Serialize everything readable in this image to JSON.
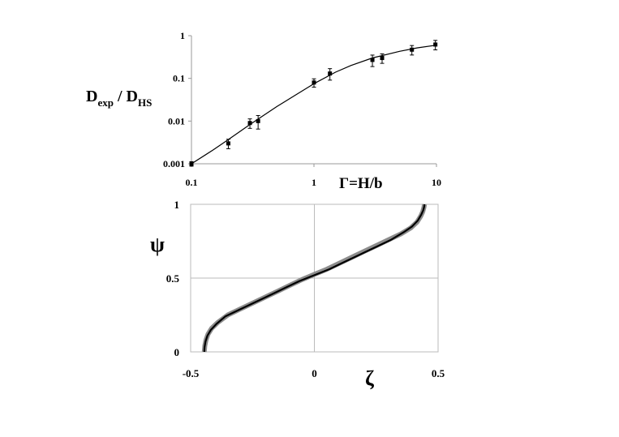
{
  "chart_data": [
    {
      "type": "scatter",
      "scale": "log-log",
      "ylabel_main": "D",
      "ylabel_sub1": "exp",
      "ylabel_sep": " / D",
      "ylabel_sub2": "HS",
      "xlabel": "Γ=H/b",
      "xlim": [
        0.1,
        10
      ],
      "ylim": [
        0.001,
        1
      ],
      "xticks": [
        "0.1",
        "1",
        "10"
      ],
      "yticks": [
        "0.001",
        "0.01",
        "0.1",
        "1"
      ],
      "grid": false,
      "series": [
        {
          "kind": "points-with-error-bars",
          "x": [
            0.1,
            0.2,
            0.3,
            0.35,
            1.0,
            1.35,
            3.0,
            3.6,
            6.3,
            9.8
          ],
          "y": [
            0.001,
            0.003,
            0.009,
            0.01,
            0.08,
            0.13,
            0.27,
            0.3,
            0.47,
            0.62
          ],
          "err_frac": [
            0.12,
            0.25,
            0.25,
            0.35,
            0.22,
            0.3,
            0.3,
            0.25,
            0.25,
            0.25
          ]
        },
        {
          "kind": "fit-line",
          "x": [
            0.1,
            0.15,
            0.2,
            0.3,
            0.5,
            0.7,
            1.0,
            1.5,
            2.0,
            3.0,
            5.0,
            7.0,
            10.0
          ],
          "y": [
            0.001,
            0.0021,
            0.0037,
            0.0083,
            0.022,
            0.04,
            0.075,
            0.14,
            0.2,
            0.3,
            0.43,
            0.52,
            0.6
          ]
        }
      ]
    },
    {
      "type": "line",
      "ylabel": "ψ",
      "xlabel": "ζ",
      "xlim": [
        -0.5,
        0.5
      ],
      "ylim": [
        0,
        1
      ],
      "xticks": [
        "-0.5",
        "0",
        "0.5"
      ],
      "yticks": [
        "0",
        "0.5",
        "1"
      ],
      "grid": true,
      "series": [
        {
          "kind": "data-thick-gray",
          "x": [
            -0.445,
            -0.443,
            -0.438,
            -0.43,
            -0.415,
            -0.39,
            -0.35,
            -0.3,
            -0.25,
            -0.2,
            -0.15,
            -0.1,
            -0.05,
            0.0,
            0.05,
            0.1,
            0.15,
            0.2,
            0.25,
            0.3,
            0.35,
            0.39,
            0.415,
            0.43,
            0.438,
            0.443,
            0.445
          ],
          "y": [
            0.0,
            0.04,
            0.08,
            0.12,
            0.16,
            0.2,
            0.25,
            0.29,
            0.33,
            0.37,
            0.41,
            0.45,
            0.49,
            0.525,
            0.56,
            0.6,
            0.64,
            0.68,
            0.72,
            0.76,
            0.8,
            0.84,
            0.88,
            0.92,
            0.95,
            0.98,
            1.0
          ]
        },
        {
          "kind": "fit-black",
          "x": [
            -0.445,
            -0.444,
            -0.44,
            -0.432,
            -0.418,
            -0.395,
            -0.36,
            -0.31,
            -0.26,
            -0.21,
            -0.16,
            -0.11,
            -0.06,
            0.0,
            0.06,
            0.11,
            0.16,
            0.21,
            0.26,
            0.31,
            0.36,
            0.395,
            0.418,
            0.432,
            0.44,
            0.444,
            0.445
          ],
          "y": [
            0.0,
            0.03,
            0.07,
            0.11,
            0.15,
            0.19,
            0.24,
            0.28,
            0.32,
            0.36,
            0.4,
            0.44,
            0.48,
            0.52,
            0.56,
            0.6,
            0.64,
            0.68,
            0.72,
            0.76,
            0.81,
            0.85,
            0.89,
            0.93,
            0.96,
            0.985,
            1.0
          ]
        }
      ]
    }
  ]
}
